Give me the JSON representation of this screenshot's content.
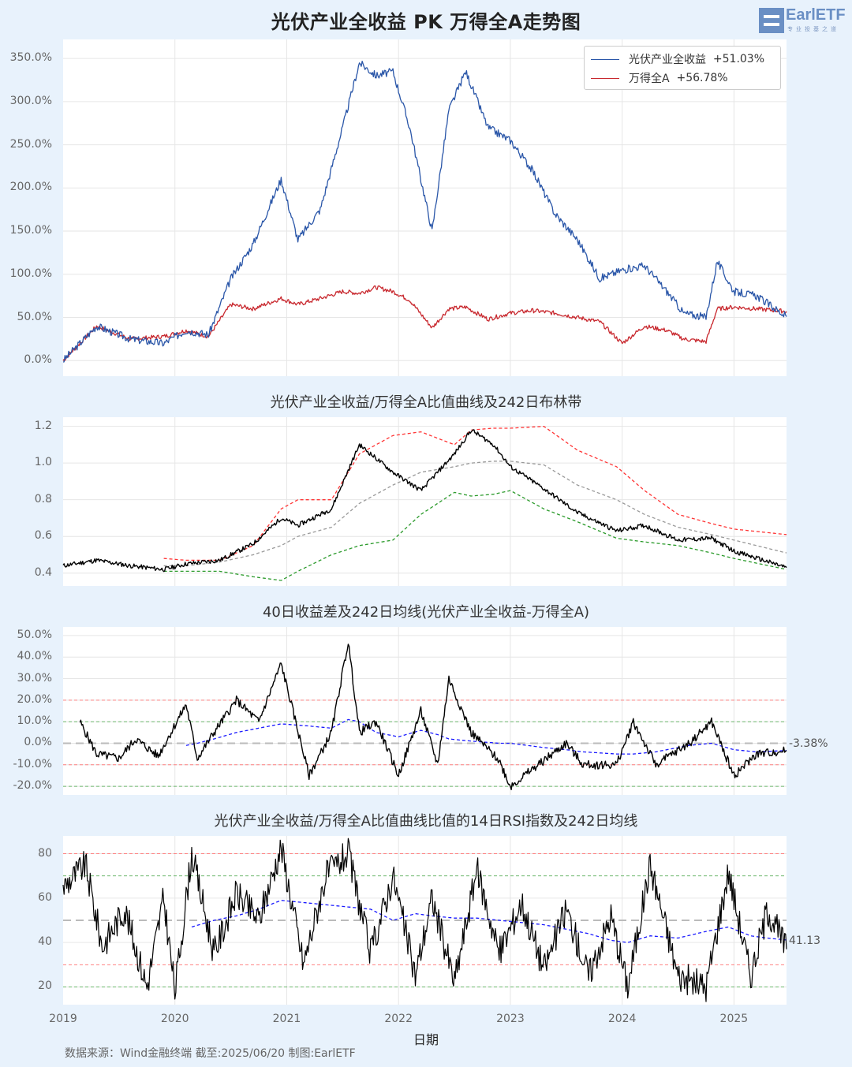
{
  "header": {
    "title": "光伏产业全收益 PK 万得全A走势图",
    "logo_text": "EarlETF",
    "logo_subtext": "专业投基之道"
  },
  "x_axis": {
    "label": "日期",
    "ticks": [
      "2019",
      "2020",
      "2021",
      "2022",
      "2023",
      "2024",
      "2025"
    ]
  },
  "footer": {
    "source": "数据来源：Wind金融终端 截至:2025/06/20 制图:EarlETF"
  },
  "colors": {
    "background": "#e8f2fc",
    "pv_line": "#2a56a8",
    "wind_line": "#c8282e",
    "ratio_line": "#000000",
    "upper_band": "#ff3333",
    "mid_band": "#999999",
    "lower_band": "#2a9a2a",
    "ma_line": "#1a1aff"
  },
  "chart_data": [
    {
      "type": "line",
      "title": "光伏产业全收益 PK 万得全A走势图",
      "xlabel": "",
      "ylabel": "",
      "ylim": [
        -0.3,
        0.36
      ],
      "y_ticks": [
        "0.0%",
        "50.0%",
        "100.0%",
        "150.0%",
        "200.0%",
        "250.0%",
        "300.0%",
        "350.0%"
      ],
      "legend": [
        {
          "name": "光伏产业全收益",
          "value": "+51.03%"
        },
        {
          "name": "万得全A",
          "value": "+56.78%"
        }
      ],
      "legend_position": "upper right",
      "grid": true,
      "x": [
        2019.0,
        2019.3,
        2019.6,
        2019.9,
        2020.1,
        2020.3,
        2020.5,
        2020.7,
        2020.95,
        2021.1,
        2021.3,
        2021.5,
        2021.65,
        2021.8,
        2021.95,
        2022.1,
        2022.3,
        2022.45,
        2022.6,
        2022.8,
        2023.0,
        2023.2,
        2023.4,
        2023.6,
        2023.8,
        2024.0,
        2024.2,
        2024.4,
        2024.55,
        2024.75,
        2024.85,
        2025.0,
        2025.2,
        2025.47
      ],
      "series": [
        {
          "name": "光伏产业全收益",
          "values": [
            0,
            40,
            25,
            20,
            35,
            30,
            95,
            135,
            210,
            140,
            175,
            270,
            345,
            330,
            335,
            270,
            150,
            290,
            335,
            270,
            255,
            220,
            170,
            140,
            95,
            105,
            110,
            80,
            55,
            50,
            115,
            80,
            75,
            51
          ]
        },
        {
          "name": "万得全A",
          "values": [
            0,
            40,
            25,
            28,
            35,
            28,
            65,
            60,
            72,
            65,
            72,
            80,
            78,
            85,
            80,
            70,
            38,
            60,
            62,
            48,
            55,
            58,
            55,
            50,
            45,
            20,
            40,
            35,
            25,
            22,
            60,
            62,
            60,
            57
          ]
        }
      ]
    },
    {
      "type": "line",
      "title": "光伏产业全收益/万得全A比值曲线及242日布林带",
      "ylim": [
        0.33,
        1.25
      ],
      "y_ticks": [
        "0.4",
        "0.6",
        "0.8",
        "1.0",
        "1.2"
      ],
      "x": [
        2019.0,
        2019.3,
        2019.6,
        2019.9,
        2020.1,
        2020.4,
        2020.7,
        2020.95,
        2021.1,
        2021.4,
        2021.65,
        2021.95,
        2022.2,
        2022.5,
        2022.65,
        2022.85,
        2023.0,
        2023.3,
        2023.6,
        2023.95,
        2024.2,
        2024.5,
        2024.8,
        2025.0,
        2025.47
      ],
      "series": [
        {
          "name": "比值",
          "values": [
            0.44,
            0.47,
            0.44,
            0.42,
            0.45,
            0.47,
            0.56,
            0.7,
            0.66,
            0.75,
            1.1,
            0.95,
            0.85,
            1.05,
            1.18,
            1.1,
            0.98,
            0.86,
            0.73,
            0.63,
            0.66,
            0.58,
            0.59,
            0.52,
            0.43
          ]
        },
        {
          "name": "上轨",
          "values": [
            null,
            null,
            null,
            0.48,
            0.47,
            0.47,
            0.55,
            0.75,
            0.8,
            0.8,
            1.05,
            1.15,
            1.17,
            1.1,
            1.18,
            1.19,
            1.19,
            1.2,
            1.07,
            0.98,
            0.85,
            0.72,
            0.67,
            0.64,
            0.61
          ]
        },
        {
          "name": "中轨",
          "values": [
            null,
            null,
            null,
            0.44,
            0.44,
            0.46,
            0.5,
            0.55,
            0.6,
            0.65,
            0.78,
            0.88,
            0.95,
            0.98,
            1.0,
            1.01,
            1.01,
            0.99,
            0.88,
            0.8,
            0.72,
            0.65,
            0.61,
            0.58,
            0.51
          ]
        },
        {
          "name": "下轨",
          "values": [
            null,
            null,
            null,
            0.41,
            0.41,
            0.41,
            0.38,
            0.36,
            0.41,
            0.5,
            0.55,
            0.58,
            0.72,
            0.84,
            0.82,
            0.83,
            0.85,
            0.75,
            0.68,
            0.59,
            0.57,
            0.55,
            0.51,
            0.48,
            0.42
          ]
        }
      ]
    },
    {
      "type": "line",
      "title": "40日收益差及242日均线(光伏产业全收益-万得全A)",
      "ylim": [
        -0.25,
        0.55
      ],
      "y_ticks": [
        "-20.0%",
        "-10.0%",
        "0.0%",
        "10.0%",
        "20.0%",
        "30.0%",
        "40.0%",
        "50.0%"
      ],
      "reference_lines": {
        "red": [
          20,
          -10
        ],
        "green": [
          10,
          -20
        ],
        "gray": [
          0
        ]
      },
      "end_label": "-3.38%",
      "x": [
        2019.15,
        2019.3,
        2019.5,
        2019.65,
        2019.85,
        2020.1,
        2020.2,
        2020.35,
        2020.55,
        2020.75,
        2020.95,
        2021.2,
        2021.4,
        2021.55,
        2021.65,
        2021.8,
        2022.0,
        2022.2,
        2022.35,
        2022.45,
        2022.65,
        2022.9,
        2023.0,
        2023.3,
        2023.5,
        2023.65,
        2023.95,
        2024.1,
        2024.3,
        2024.6,
        2024.8,
        2025.0,
        2025.2,
        2025.47
      ],
      "series": [
        {
          "name": "40日收益差",
          "values": [
            10,
            -5,
            -7,
            2,
            -6,
            18,
            -7,
            5,
            20,
            10,
            37,
            -15,
            5,
            47,
            5,
            10,
            -15,
            15,
            -10,
            30,
            5,
            -8,
            -20,
            -8,
            0,
            -10,
            -10,
            10,
            -10,
            0,
            10,
            -15,
            -5,
            -3.38
          ]
        },
        {
          "name": "242日均线",
          "values": [
            null,
            null,
            null,
            null,
            null,
            -1,
            0,
            2,
            5,
            7,
            9,
            8,
            7,
            11,
            10,
            5,
            3,
            6,
            4,
            2,
            1,
            0,
            0,
            -2,
            -3,
            -4,
            -5,
            -5,
            -4,
            -1,
            0,
            -3,
            -4,
            -3.38
          ]
        }
      ]
    },
    {
      "type": "line",
      "title": "光伏产业全收益/万得全A比值曲线比值的14日RSI指数及242日均线",
      "ylim": [
        12,
        88
      ],
      "y_ticks": [
        "20",
        "40",
        "60",
        "80"
      ],
      "reference_lines": {
        "red": [
          80,
          30
        ],
        "green": [
          70,
          20
        ],
        "gray": [
          50
        ]
      },
      "end_label": "41.13",
      "x": [
        2019.0,
        2019.2,
        2019.35,
        2019.55,
        2019.75,
        2019.9,
        2020.0,
        2020.15,
        2020.35,
        2020.55,
        2020.75,
        2020.95,
        2021.15,
        2021.35,
        2021.55,
        2021.75,
        2021.95,
        2022.15,
        2022.3,
        2022.5,
        2022.7,
        2022.9,
        2023.1,
        2023.3,
        2023.5,
        2023.7,
        2023.9,
        2024.05,
        2024.25,
        2024.5,
        2024.75,
        2024.95,
        2025.15,
        2025.3,
        2025.47
      ],
      "series": [
        {
          "name": "RSI",
          "values": [
            65,
            75,
            38,
            55,
            20,
            60,
            18,
            80,
            35,
            62,
            50,
            83,
            30,
            70,
            80,
            35,
            70,
            25,
            60,
            22,
            73,
            35,
            58,
            28,
            55,
            25,
            52,
            20,
            75,
            25,
            20,
            72,
            25,
            55,
            37
          ]
        },
        {
          "name": "242日均线",
          "values": [
            null,
            null,
            null,
            null,
            null,
            null,
            null,
            47,
            50,
            52,
            55,
            59,
            58,
            57,
            56,
            55,
            50,
            53,
            52,
            51,
            51,
            50,
            49,
            48,
            46,
            44,
            41,
            40,
            43,
            42,
            45,
            47,
            43,
            42,
            41.13
          ]
        }
      ]
    }
  ]
}
